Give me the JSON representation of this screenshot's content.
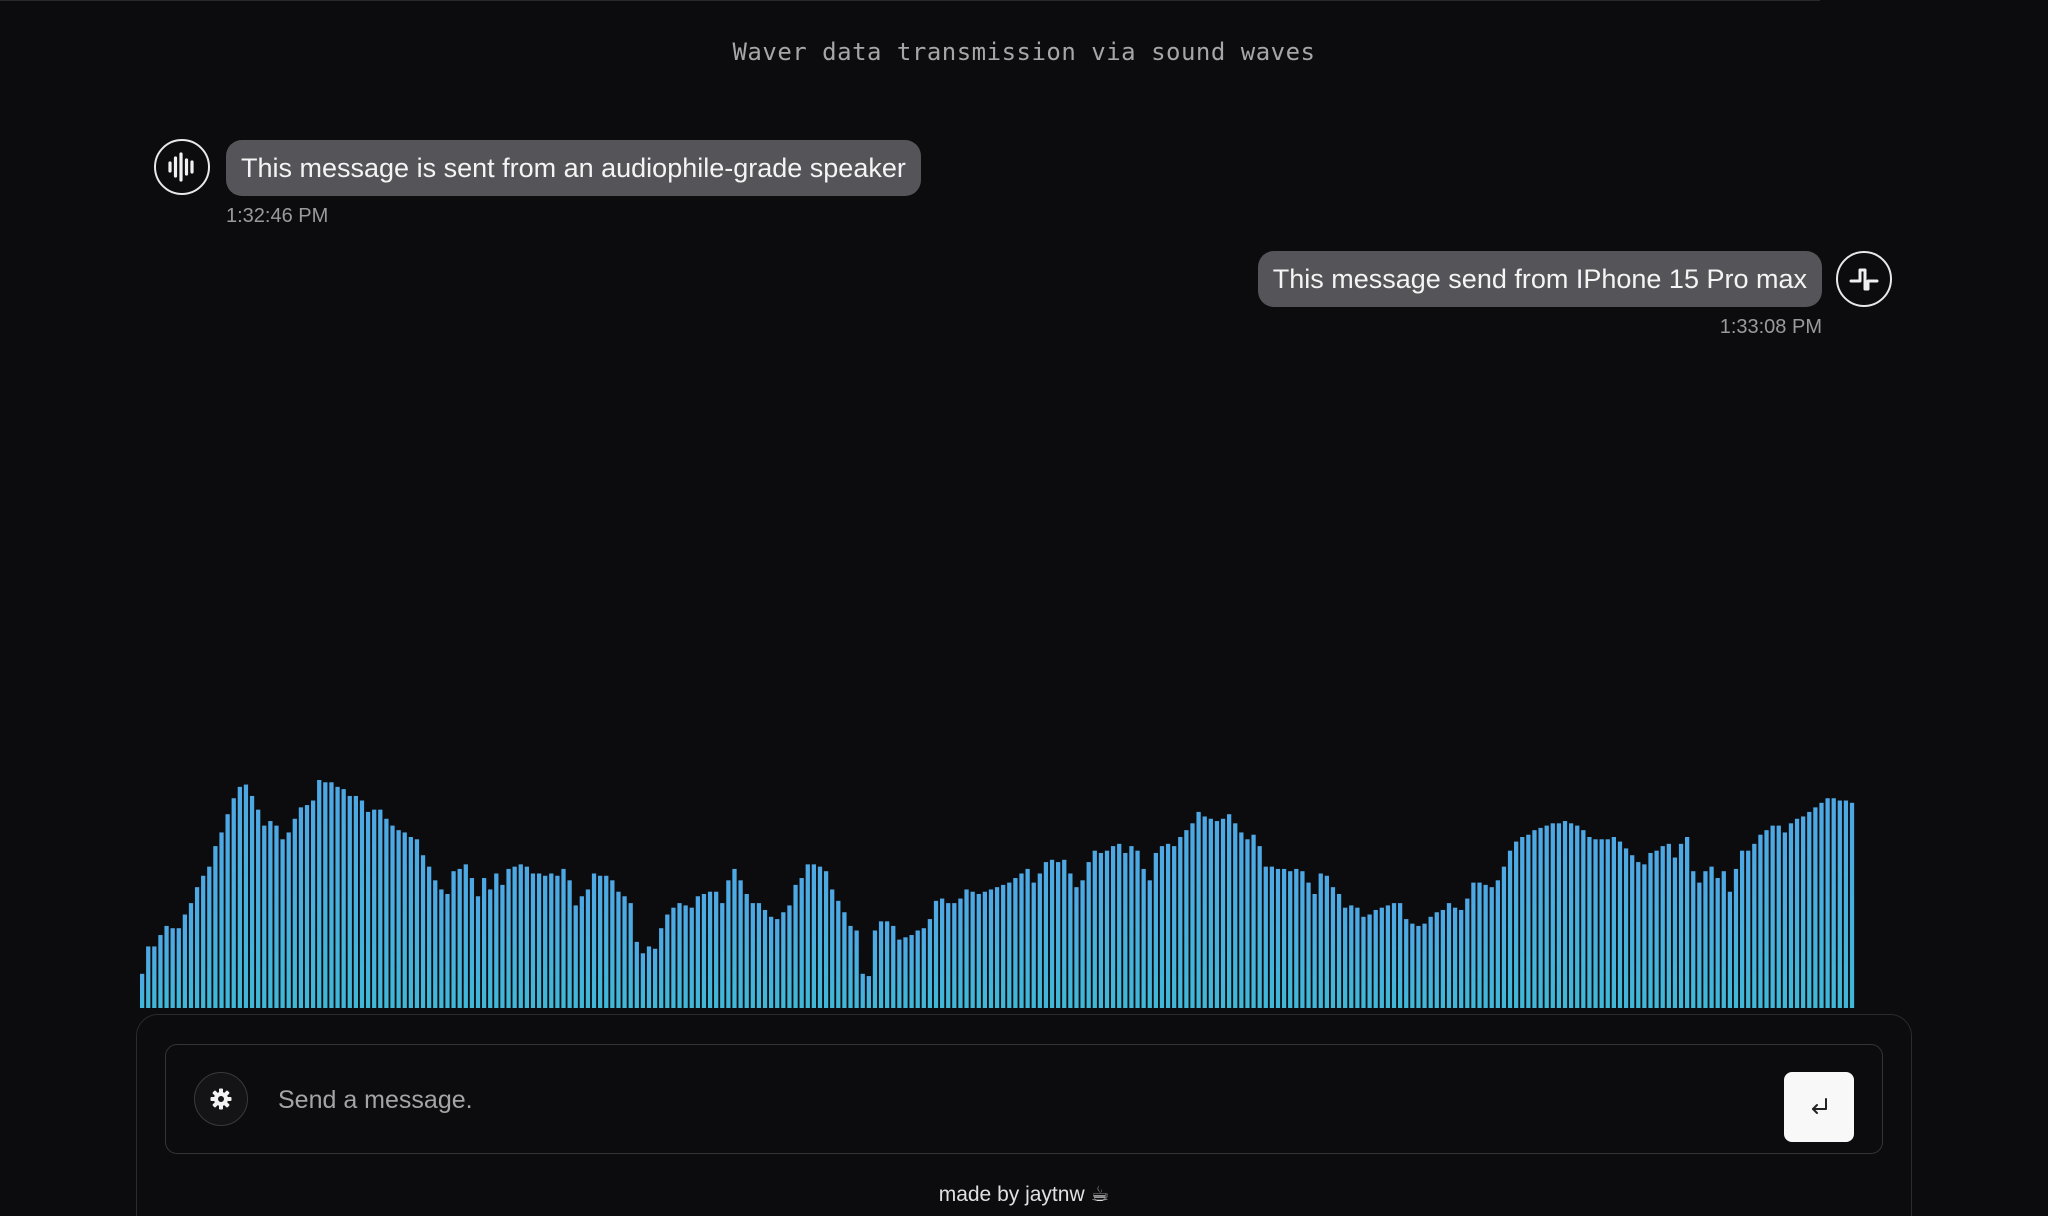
{
  "header": {
    "title": "Waver data transmission via sound waves"
  },
  "messages": [
    {
      "text": "This message is sent from an audiophile-grade speaker",
      "time": "1:32:46 PM",
      "side": "left",
      "avatar_icon": "sound-wave-icon"
    },
    {
      "text": "This message send from IPhone 15 Pro max",
      "time": "1:33:08 PM",
      "side": "right",
      "avatar_icon": "pulse-icon"
    }
  ],
  "visualizer": {
    "levels": [
      0.15,
      0.27,
      0.27,
      0.32,
      0.36,
      0.35,
      0.35,
      0.41,
      0.46,
      0.53,
      0.58,
      0.62,
      0.71,
      0.77,
      0.85,
      0.92,
      0.97,
      0.98,
      0.93,
      0.87,
      0.8,
      0.82,
      0.8,
      0.74,
      0.77,
      0.83,
      0.88,
      0.89,
      0.91,
      1.0,
      0.99,
      0.99,
      0.97,
      0.96,
      0.93,
      0.93,
      0.91,
      0.86,
      0.87,
      0.87,
      0.83,
      0.8,
      0.78,
      0.77,
      0.75,
      0.74,
      0.67,
      0.62,
      0.56,
      0.52,
      0.5,
      0.6,
      0.61,
      0.63,
      0.57,
      0.49,
      0.57,
      0.52,
      0.59,
      0.54,
      0.61,
      0.62,
      0.63,
      0.62,
      0.59,
      0.59,
      0.58,
      0.59,
      0.58,
      0.61,
      0.56,
      0.45,
      0.49,
      0.52,
      0.59,
      0.58,
      0.58,
      0.56,
      0.51,
      0.49,
      0.46,
      0.29,
      0.24,
      0.27,
      0.26,
      0.35,
      0.41,
      0.44,
      0.46,
      0.45,
      0.44,
      0.49,
      0.5,
      0.51,
      0.51,
      0.46,
      0.56,
      0.61,
      0.56,
      0.5,
      0.46,
      0.46,
      0.43,
      0.4,
      0.39,
      0.42,
      0.45,
      0.54,
      0.57,
      0.63,
      0.63,
      0.62,
      0.6,
      0.52,
      0.47,
      0.42,
      0.36,
      0.34,
      0.15,
      0.14,
      0.34,
      0.38,
      0.38,
      0.36,
      0.3,
      0.31,
      0.32,
      0.34,
      0.35,
      0.39,
      0.47,
      0.48,
      0.46,
      0.46,
      0.48,
      0.52,
      0.51,
      0.5,
      0.51,
      0.52,
      0.53,
      0.54,
      0.55,
      0.57,
      0.59,
      0.61,
      0.55,
      0.59,
      0.64,
      0.65,
      0.64,
      0.65,
      0.59,
      0.53,
      0.56,
      0.64,
      0.69,
      0.68,
      0.69,
      0.71,
      0.72,
      0.68,
      0.71,
      0.69,
      0.61,
      0.56,
      0.68,
      0.71,
      0.72,
      0.71,
      0.75,
      0.78,
      0.81,
      0.86,
      0.84,
      0.83,
      0.82,
      0.83,
      0.85,
      0.81,
      0.77,
      0.74,
      0.76,
      0.71,
      0.62,
      0.62,
      0.61,
      0.61,
      0.6,
      0.61,
      0.6,
      0.55,
      0.5,
      0.59,
      0.58,
      0.53,
      0.5,
      0.44,
      0.45,
      0.44,
      0.4,
      0.41,
      0.43,
      0.44,
      0.45,
      0.46,
      0.46,
      0.39,
      0.37,
      0.36,
      0.37,
      0.4,
      0.42,
      0.43,
      0.46,
      0.44,
      0.43,
      0.48,
      0.55,
      0.55,
      0.54,
      0.53,
      0.56,
      0.62,
      0.69,
      0.73,
      0.75,
      0.76,
      0.78,
      0.79,
      0.8,
      0.81,
      0.81,
      0.82,
      0.81,
      0.8,
      0.78,
      0.75,
      0.74,
      0.74,
      0.74,
      0.75,
      0.73,
      0.7,
      0.67,
      0.64,
      0.63,
      0.68,
      0.69,
      0.71,
      0.72,
      0.66,
      0.72,
      0.75,
      0.6,
      0.55,
      0.6,
      0.62,
      0.57,
      0.6,
      0.51,
      0.61,
      0.69,
      0.69,
      0.72,
      0.76,
      0.78,
      0.8,
      0.8,
      0.77,
      0.81,
      0.83,
      0.84,
      0.86,
      0.88,
      0.9,
      0.92,
      0.92,
      0.91,
      0.91,
      0.9
    ],
    "gradient_top": "#4ea8e4",
    "gradient_bottom": "#3fb8d8"
  },
  "composer": {
    "placeholder": "Send a message.",
    "settings_icon": "gear-icon",
    "send_icon": "enter-return-icon"
  },
  "footer": {
    "text": "made by jaytnw ☕"
  },
  "colors": {
    "background": "#0c0b0e",
    "bubble": "#555559",
    "timestamp": "#9a9a9e"
  }
}
